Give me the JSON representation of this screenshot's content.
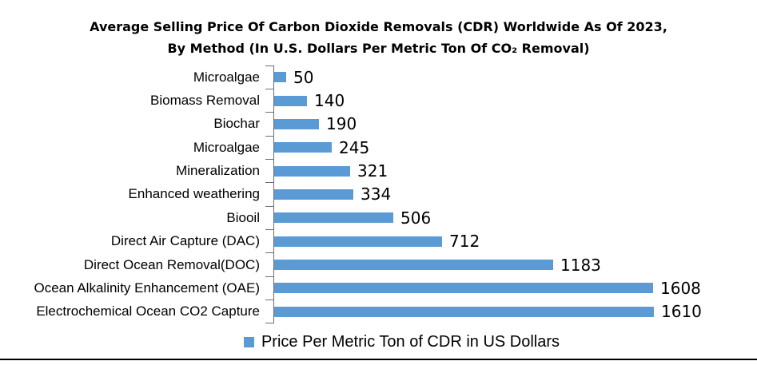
{
  "title": "Average Selling Price Of Carbon Dioxide Removals (CDR) Worldwide As Of 2023, By Method (In U.S. Dollars Per Metric Ton Of CO₂ Removal)",
  "legend": {
    "label": "Price Per Metric Ton of CDR in US Dollars"
  },
  "colors": {
    "bar": "#5B9BD5",
    "axis": "#6E6E6E",
    "bottom_rule": "#000000"
  },
  "chart_data": {
    "type": "bar",
    "orientation": "horizontal",
    "title": "Average Selling Price Of Carbon Dioxide Removals (CDR) Worldwide As Of 2023, By Method (In U.S. Dollars Per Metric Ton Of CO₂ Removal)",
    "categories": [
      "Microalgae",
      "Biomass Removal",
      "Biochar",
      "Microalgae",
      "Mineralization",
      "Enhanced weathering",
      "Biooil",
      "Direct Air Capture (DAC)",
      "Direct Ocean Removal(DOC)",
      "Ocean Alkalinity Enhancement (OAE)",
      "Electrochemical Ocean CO2 Capture"
    ],
    "values": [
      50,
      140,
      190,
      245,
      321,
      334,
      506,
      712,
      1183,
      1608,
      1610
    ],
    "series_name": "Price Per Metric Ton of CDR in US Dollars",
    "legend_entries": [
      "Price Per Metric Ton of CDR in US Dollars"
    ],
    "value_labels_position": "right-of-bar",
    "axis": {
      "x_tick_labels_shown": false,
      "gridlines": false,
      "implied_xlim": [
        0,
        2050
      ]
    },
    "legend_position": "bottom-center"
  }
}
